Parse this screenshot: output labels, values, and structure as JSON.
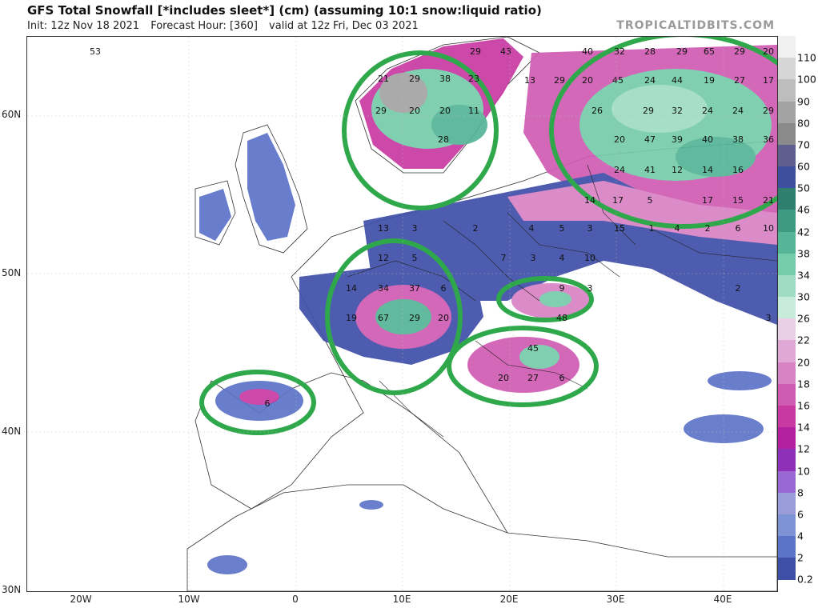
{
  "header": {
    "title": "GFS Total Snowfall [*includes sleet*] (cm) (assuming 10:1 snow:liquid ratio)",
    "init": "Init: 12z Nov 18 2021",
    "forecast_hour": "Forecast Hour: [360]",
    "valid": "valid at 12z Fri, Dec 03 2021"
  },
  "watermark": "TROPICALTIDBITS.COM",
  "axes": {
    "lat_labels": [
      "60N",
      "50N",
      "40N",
      "30N"
    ],
    "lon_labels": [
      "20W",
      "10W",
      "0",
      "10E",
      "20E",
      "30E",
      "40E"
    ]
  },
  "colorbar": {
    "labels": [
      "110",
      "100",
      "90",
      "80",
      "70",
      "60",
      "50",
      "46",
      "42",
      "38",
      "34",
      "30",
      "26",
      "22",
      "20",
      "18",
      "16",
      "14",
      "12",
      "10",
      "8",
      "6",
      "4",
      "2",
      "0.2"
    ],
    "colors": [
      "#f0f0f0",
      "#d6d6d6",
      "#bdbdbd",
      "#a3a3a3",
      "#8a8a8a",
      "#5f5f8f",
      "#3f4fa0",
      "#2e7f6e",
      "#3f9a82",
      "#55b596",
      "#76cbab",
      "#9fdcc3",
      "#c7ecdb",
      "#ead0e6",
      "#e0a8d4",
      "#d883c4",
      "#d05bb2",
      "#c83aa2",
      "#b41fa0",
      "#8e30b8",
      "#9a68d2",
      "#9a9cda",
      "#7e93d6",
      "#5c74c8",
      "#3e4fa8"
    ]
  },
  "snow_values": [
    {
      "label": "53"
    },
    {
      "label": "29"
    },
    {
      "label": "43"
    },
    {
      "label": "21"
    },
    {
      "label": "29"
    },
    {
      "label": "38"
    },
    {
      "label": "23"
    },
    {
      "label": "29"
    },
    {
      "label": "20"
    },
    {
      "label": "20"
    },
    {
      "label": "11"
    },
    {
      "label": "28"
    },
    {
      "label": "40"
    },
    {
      "label": "32"
    },
    {
      "label": "28"
    },
    {
      "label": "29"
    },
    {
      "label": "65"
    },
    {
      "label": "29"
    },
    {
      "label": "20"
    },
    {
      "label": "13"
    },
    {
      "label": "29"
    },
    {
      "label": "20"
    },
    {
      "label": "45"
    },
    {
      "label": "24"
    },
    {
      "label": "44"
    },
    {
      "label": "19"
    },
    {
      "label": "27"
    },
    {
      "label": "17"
    },
    {
      "label": "26"
    },
    {
      "label": "29"
    },
    {
      "label": "32"
    },
    {
      "label": "24"
    },
    {
      "label": "24"
    },
    {
      "label": "29"
    },
    {
      "label": "20"
    },
    {
      "label": "47"
    },
    {
      "label": "39"
    },
    {
      "label": "40"
    },
    {
      "label": "38"
    },
    {
      "label": "36"
    },
    {
      "label": "24"
    },
    {
      "label": "41"
    },
    {
      "label": "12"
    },
    {
      "label": "14"
    },
    {
      "label": "16"
    },
    {
      "label": "14"
    },
    {
      "label": "17"
    },
    {
      "label": "5"
    },
    {
      "label": "17"
    },
    {
      "label": "15"
    },
    {
      "label": "21"
    },
    {
      "label": "13"
    },
    {
      "label": "3"
    },
    {
      "label": "2"
    },
    {
      "label": "4"
    },
    {
      "label": "5"
    },
    {
      "label": "3"
    },
    {
      "label": "15"
    },
    {
      "label": "4"
    },
    {
      "label": "2"
    },
    {
      "label": "6"
    },
    {
      "label": "10"
    },
    {
      "label": "12"
    },
    {
      "label": "5"
    },
    {
      "label": "7"
    },
    {
      "label": "3"
    },
    {
      "label": "4"
    },
    {
      "label": "10"
    },
    {
      "label": "14"
    },
    {
      "label": "34"
    },
    {
      "label": "37"
    },
    {
      "label": "6"
    },
    {
      "label": "19"
    },
    {
      "label": "67"
    },
    {
      "label": "29"
    },
    {
      "label": "20"
    },
    {
      "label": "9"
    },
    {
      "label": "3"
    },
    {
      "label": "48"
    },
    {
      "label": "45"
    },
    {
      "label": "20"
    },
    {
      "label": "27"
    },
    {
      "label": "6"
    },
    {
      "label": "6"
    },
    {
      "label": "3"
    },
    {
      "label": "1"
    },
    {
      "label": "2"
    },
    {
      "label": "15"
    }
  ]
}
